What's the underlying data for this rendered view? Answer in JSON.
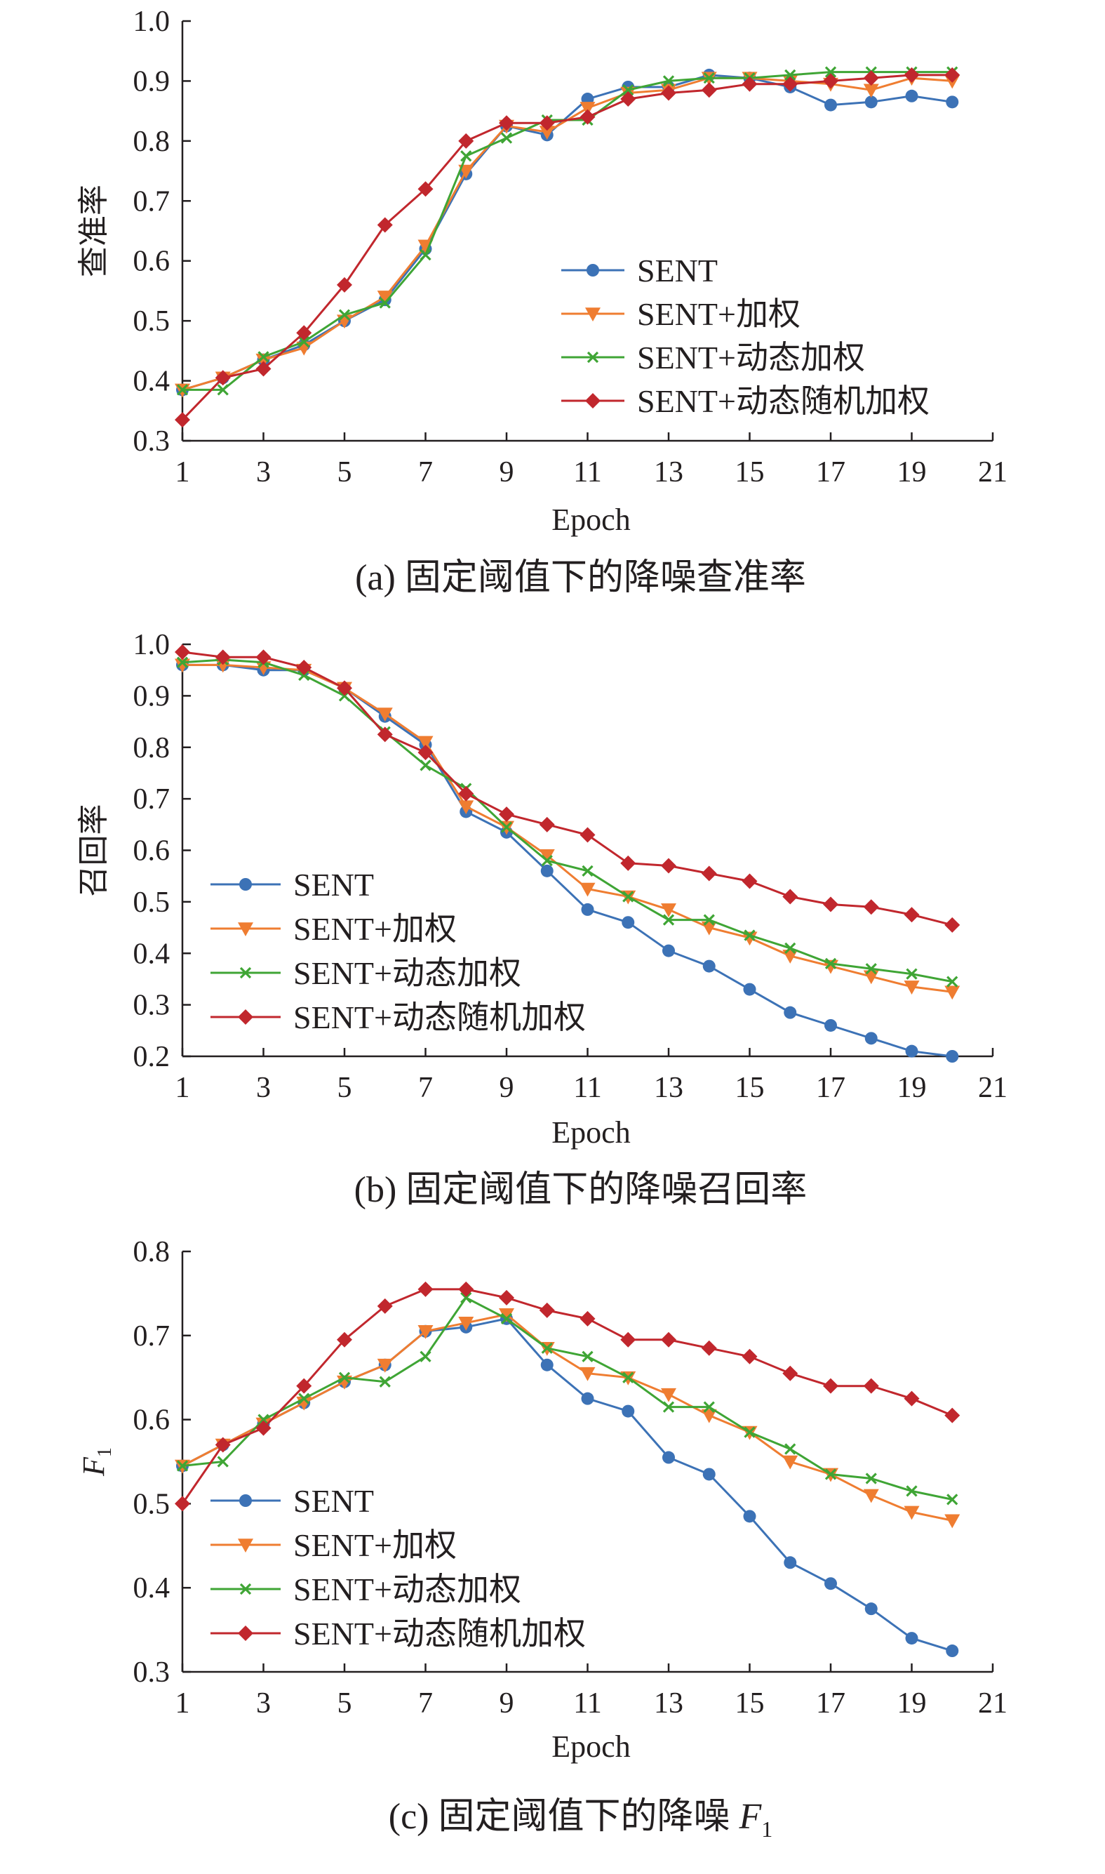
{
  "charts": [
    {
      "caption": "(a) 固定阈值下的降噪查准率",
      "caption_italic": "",
      "caption_sub": ""
    },
    {
      "caption": "(b) 固定阈值下的降噪召回率",
      "caption_italic": "",
      "caption_sub": ""
    },
    {
      "caption": "(c) 固定阈值下的降噪 ",
      "caption_italic": "F",
      "caption_sub": "1"
    }
  ],
  "colors": {
    "SENT": "#3c72b6",
    "SENT+加权": "#ef7d31",
    "SENT+动态加权": "#3fa535",
    "SENT+动态随机加权": "#c1272d",
    "axis": "#231f20"
  },
  "chart_data": [
    {
      "type": "line",
      "title": "",
      "xlabel": "Epoch",
      "ylabel": "查准率",
      "ylabel_italic": "",
      "ylabel_sub": "",
      "xlim": [
        1,
        21
      ],
      "ylim": [
        0.3,
        1.0
      ],
      "xticks": [
        "1",
        "3",
        "5",
        "7",
        "9",
        "11",
        "13",
        "15",
        "17",
        "19",
        "21"
      ],
      "yticks": [
        "0.3",
        "0.4",
        "0.5",
        "0.6",
        "0.7",
        "0.8",
        "0.9",
        "1.0"
      ],
      "grid": false,
      "legend_position": "center-right",
      "x": [
        1,
        2,
        3,
        4,
        5,
        6,
        7,
        8,
        9,
        10,
        11,
        12,
        13,
        14,
        15,
        16,
        17,
        18,
        19,
        20
      ],
      "series": [
        {
          "name": "SENT",
          "marker": "circle",
          "values": [
            0.385,
            0.405,
            0.435,
            0.46,
            0.5,
            0.535,
            0.62,
            0.745,
            0.825,
            0.81,
            0.87,
            0.89,
            0.89,
            0.91,
            0.905,
            0.89,
            0.86,
            0.865,
            0.875,
            0.865
          ]
        },
        {
          "name": "SENT+加权",
          "marker": "triangle-down",
          "values": [
            0.385,
            0.405,
            0.435,
            0.455,
            0.5,
            0.54,
            0.625,
            0.75,
            0.825,
            0.815,
            0.855,
            0.88,
            0.885,
            0.905,
            0.905,
            0.9,
            0.895,
            0.885,
            0.905,
            0.9
          ]
        },
        {
          "name": "SENT+动态加权",
          "marker": "x",
          "values": [
            0.385,
            0.385,
            0.44,
            0.465,
            0.51,
            0.53,
            0.61,
            0.775,
            0.805,
            0.835,
            0.835,
            0.885,
            0.9,
            0.905,
            0.905,
            0.91,
            0.915,
            0.915,
            0.915,
            0.915
          ]
        },
        {
          "name": "SENT+动态随机加权",
          "marker": "diamond",
          "values": [
            0.335,
            0.405,
            0.42,
            0.48,
            0.56,
            0.66,
            0.72,
            0.8,
            0.83,
            0.83,
            0.84,
            0.87,
            0.88,
            0.885,
            0.895,
            0.895,
            0.9,
            0.905,
            0.91,
            0.91
          ]
        }
      ]
    },
    {
      "type": "line",
      "title": "",
      "xlabel": "Epoch",
      "ylabel": "召回率",
      "ylabel_italic": "",
      "ylabel_sub": "",
      "xlim": [
        1,
        21
      ],
      "ylim": [
        0.2,
        1.0
      ],
      "xticks": [
        "1",
        "3",
        "5",
        "7",
        "9",
        "11",
        "13",
        "15",
        "17",
        "19",
        "21"
      ],
      "yticks": [
        "0.2",
        "0.3",
        "0.4",
        "0.5",
        "0.6",
        "0.7",
        "0.8",
        "0.9",
        "1.0"
      ],
      "grid": false,
      "legend_position": "bottom-left",
      "x": [
        1,
        2,
        3,
        4,
        5,
        6,
        7,
        8,
        9,
        10,
        11,
        12,
        13,
        14,
        15,
        16,
        17,
        18,
        19,
        20
      ],
      "series": [
        {
          "name": "SENT",
          "marker": "circle",
          "values": [
            0.96,
            0.96,
            0.95,
            0.95,
            0.915,
            0.86,
            0.805,
            0.675,
            0.635,
            0.56,
            0.485,
            0.46,
            0.405,
            0.375,
            0.33,
            0.285,
            0.26,
            0.235,
            0.21,
            0.2
          ]
        },
        {
          "name": "SENT+加权",
          "marker": "triangle-down",
          "values": [
            0.96,
            0.96,
            0.955,
            0.95,
            0.915,
            0.865,
            0.81,
            0.685,
            0.645,
            0.59,
            0.525,
            0.51,
            0.485,
            0.45,
            0.43,
            0.395,
            0.375,
            0.355,
            0.335,
            0.325
          ]
        },
        {
          "name": "SENT+动态加权",
          "marker": "x",
          "values": [
            0.965,
            0.97,
            0.965,
            0.94,
            0.9,
            0.83,
            0.765,
            0.72,
            0.645,
            0.58,
            0.56,
            0.51,
            0.465,
            0.465,
            0.435,
            0.41,
            0.38,
            0.37,
            0.36,
            0.345
          ]
        },
        {
          "name": "SENT+动态随机加权",
          "marker": "diamond",
          "values": [
            0.985,
            0.975,
            0.975,
            0.955,
            0.915,
            0.825,
            0.79,
            0.71,
            0.67,
            0.65,
            0.63,
            0.575,
            0.57,
            0.555,
            0.54,
            0.51,
            0.495,
            0.49,
            0.475,
            0.455
          ]
        }
      ]
    },
    {
      "type": "line",
      "title": "",
      "xlabel": "Epoch",
      "ylabel": "",
      "ylabel_italic": "F",
      "ylabel_sub": "1",
      "xlim": [
        1,
        21
      ],
      "ylim": [
        0.3,
        0.8
      ],
      "xticks": [
        "1",
        "3",
        "5",
        "7",
        "9",
        "11",
        "13",
        "15",
        "17",
        "19",
        "21"
      ],
      "yticks": [
        "0.3",
        "0.4",
        "0.5",
        "0.6",
        "0.7",
        "0.8"
      ],
      "grid": false,
      "legend_position": "bottom-left",
      "x": [
        1,
        2,
        3,
        4,
        5,
        6,
        7,
        8,
        9,
        10,
        11,
        12,
        13,
        14,
        15,
        16,
        17,
        18,
        19,
        20
      ],
      "series": [
        {
          "name": "SENT",
          "marker": "circle",
          "values": [
            0.545,
            0.57,
            0.595,
            0.62,
            0.645,
            0.665,
            0.705,
            0.71,
            0.72,
            0.665,
            0.625,
            0.61,
            0.555,
            0.535,
            0.485,
            0.43,
            0.405,
            0.375,
            0.34,
            0.325
          ]
        },
        {
          "name": "SENT+加权",
          "marker": "triangle-down",
          "values": [
            0.545,
            0.57,
            0.595,
            0.62,
            0.645,
            0.665,
            0.705,
            0.715,
            0.725,
            0.685,
            0.655,
            0.65,
            0.63,
            0.605,
            0.585,
            0.55,
            0.535,
            0.51,
            0.49,
            0.48
          ]
        },
        {
          "name": "SENT+动态加权",
          "marker": "x",
          "values": [
            0.545,
            0.55,
            0.6,
            0.625,
            0.65,
            0.645,
            0.675,
            0.745,
            0.72,
            0.685,
            0.675,
            0.65,
            0.615,
            0.615,
            0.585,
            0.565,
            0.535,
            0.53,
            0.515,
            0.505
          ]
        },
        {
          "name": "SENT+动态随机加权",
          "marker": "diamond",
          "values": [
            0.5,
            0.57,
            0.59,
            0.64,
            0.695,
            0.735,
            0.755,
            0.755,
            0.745,
            0.73,
            0.72,
            0.695,
            0.695,
            0.685,
            0.675,
            0.655,
            0.64,
            0.64,
            0.625,
            0.605
          ]
        }
      ]
    }
  ]
}
